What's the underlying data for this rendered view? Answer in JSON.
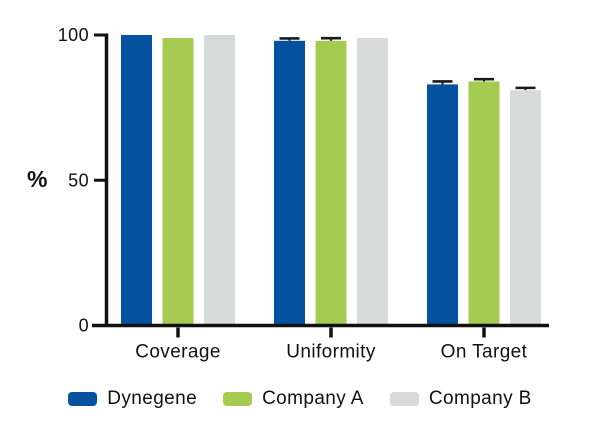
{
  "chart_data": {
    "type": "bar",
    "title": "",
    "xlabel": "",
    "ylabel": "%",
    "ylim": [
      0,
      100
    ],
    "yticks": [
      0,
      50,
      100
    ],
    "grid": false,
    "legend_position": "bottom",
    "categories": [
      "Coverage",
      "Uniformity",
      "On Target"
    ],
    "series": [
      {
        "name": "Dynegene",
        "color": "#0451A0",
        "values": [
          100,
          98,
          83
        ],
        "errors": [
          0,
          0.8,
          1.0
        ]
      },
      {
        "name": "Company A",
        "color": "#A5CB50",
        "values": [
          99,
          98,
          84
        ],
        "errors": [
          0,
          0.9,
          0.8
        ]
      },
      {
        "name": "Company B",
        "color": "#D8DADA",
        "values": [
          100,
          99,
          81
        ],
        "errors": [
          0,
          0,
          0.8
        ]
      }
    ],
    "colors": {
      "axis": "#111111",
      "error_bar": "#1a1a1a",
      "background": "#ffffff"
    }
  }
}
